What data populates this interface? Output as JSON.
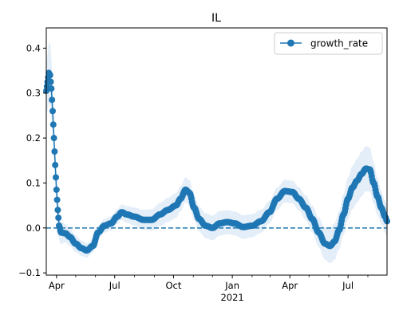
{
  "chart_data": {
    "type": "line",
    "title": "IL",
    "xlabel": "",
    "ylabel": "",
    "x_range": [
      "2020-03-16",
      "2021-08-31"
    ],
    "ylim": [
      -0.105,
      0.445
    ],
    "y_ticks": [
      -0.1,
      0.0,
      0.1,
      0.2,
      0.3,
      0.4
    ],
    "y_tick_labels": [
      "−0.1",
      "0.0",
      "0.1",
      "0.2",
      "0.3",
      "0.4"
    ],
    "x_major_ticks": [
      {
        "date": "2020-04-01",
        "label": "Apr"
      },
      {
        "date": "2020-07-01",
        "label": "Jul"
      },
      {
        "date": "2020-10-01",
        "label": "Oct"
      },
      {
        "date": "2021-01-01",
        "label": "Jan"
      },
      {
        "date": "2021-04-01",
        "label": "Apr"
      },
      {
        "date": "2021-07-01",
        "label": "Jul"
      }
    ],
    "x_year_label": {
      "date": "2021-01-01",
      "label": "2021"
    },
    "x_minor_ticks": [
      "2020-05-01",
      "2020-06-01",
      "2020-08-01",
      "2020-09-01",
      "2020-11-01",
      "2020-12-01",
      "2021-02-01",
      "2021-03-01",
      "2021-05-01",
      "2021-06-01",
      "2021-08-01"
    ],
    "grid": false,
    "legend": {
      "placement": "top-right",
      "entries": [
        "growth_rate"
      ]
    },
    "reference_line": {
      "y": 0.0,
      "style": "dashed",
      "color": "#1f77b4"
    },
    "colors": {
      "series": "#1f77b4",
      "band": "#dbe8f6"
    },
    "series": [
      {
        "name": "growth_rate",
        "marker": "circle",
        "key_points": [
          [
            "2020-03-16",
            0.305
          ],
          [
            "2020-03-18",
            0.325
          ],
          [
            "2020-03-20",
            0.345
          ],
          [
            "2020-03-22",
            0.34
          ],
          [
            "2020-03-24",
            0.31
          ],
          [
            "2020-03-26",
            0.26
          ],
          [
            "2020-03-28",
            0.2
          ],
          [
            "2020-03-30",
            0.14
          ],
          [
            "2020-04-01",
            0.085
          ],
          [
            "2020-04-03",
            0.04
          ],
          [
            "2020-04-05",
            0.005
          ],
          [
            "2020-04-08",
            -0.01
          ],
          [
            "2020-04-15",
            -0.012
          ],
          [
            "2020-04-22",
            -0.02
          ],
          [
            "2020-05-01",
            -0.035
          ],
          [
            "2020-05-10",
            -0.045
          ],
          [
            "2020-05-18",
            -0.05
          ],
          [
            "2020-05-28",
            -0.04
          ],
          [
            "2020-06-05",
            -0.01
          ],
          [
            "2020-06-15",
            0.005
          ],
          [
            "2020-06-25",
            0.01
          ],
          [
            "2020-07-05",
            0.025
          ],
          [
            "2020-07-12",
            0.035
          ],
          [
            "2020-07-20",
            0.03
          ],
          [
            "2020-08-01",
            0.025
          ],
          [
            "2020-08-15",
            0.018
          ],
          [
            "2020-08-28",
            0.018
          ],
          [
            "2020-09-10",
            0.03
          ],
          [
            "2020-09-22",
            0.04
          ],
          [
            "2020-10-05",
            0.05
          ],
          [
            "2020-10-12",
            0.065
          ],
          [
            "2020-10-20",
            0.085
          ],
          [
            "2020-10-26",
            0.078
          ],
          [
            "2020-11-02",
            0.045
          ],
          [
            "2020-11-10",
            0.02
          ],
          [
            "2020-11-20",
            0.005
          ],
          [
            "2020-12-01",
            0.0
          ],
          [
            "2020-12-12",
            0.01
          ],
          [
            "2020-12-24",
            0.013
          ],
          [
            "2021-01-05",
            0.01
          ],
          [
            "2021-01-18",
            0.002
          ],
          [
            "2021-02-01",
            0.005
          ],
          [
            "2021-02-15",
            0.015
          ],
          [
            "2021-02-28",
            0.035
          ],
          [
            "2021-03-12",
            0.065
          ],
          [
            "2021-03-24",
            0.082
          ],
          [
            "2021-04-05",
            0.08
          ],
          [
            "2021-04-15",
            0.065
          ],
          [
            "2021-04-26",
            0.045
          ],
          [
            "2021-05-06",
            0.02
          ],
          [
            "2021-05-16",
            -0.01
          ],
          [
            "2021-05-26",
            -0.035
          ],
          [
            "2021-06-03",
            -0.04
          ],
          [
            "2021-06-10",
            -0.03
          ],
          [
            "2021-06-17",
            -0.005
          ],
          [
            "2021-06-24",
            0.03
          ],
          [
            "2021-07-01",
            0.065
          ],
          [
            "2021-07-08",
            0.09
          ],
          [
            "2021-07-15",
            0.105
          ],
          [
            "2021-07-22",
            0.12
          ],
          [
            "2021-07-29",
            0.132
          ],
          [
            "2021-08-04",
            0.13
          ],
          [
            "2021-08-10",
            0.1
          ],
          [
            "2021-08-16",
            0.07
          ],
          [
            "2021-08-22",
            0.045
          ],
          [
            "2021-08-28",
            0.025
          ],
          [
            "2021-08-31",
            0.015
          ]
        ]
      }
    ],
    "band_halfwidth": [
      [
        "2020-03-16",
        0.06
      ],
      [
        "2020-03-22",
        0.07
      ],
      [
        "2020-04-01",
        0.035
      ],
      [
        "2020-04-15",
        0.02
      ],
      [
        "2020-06-01",
        0.015
      ],
      [
        "2020-10-20",
        0.028
      ],
      [
        "2021-04-01",
        0.025
      ],
      [
        "2021-07-29",
        0.05
      ],
      [
        "2021-08-31",
        0.035
      ]
    ]
  }
}
